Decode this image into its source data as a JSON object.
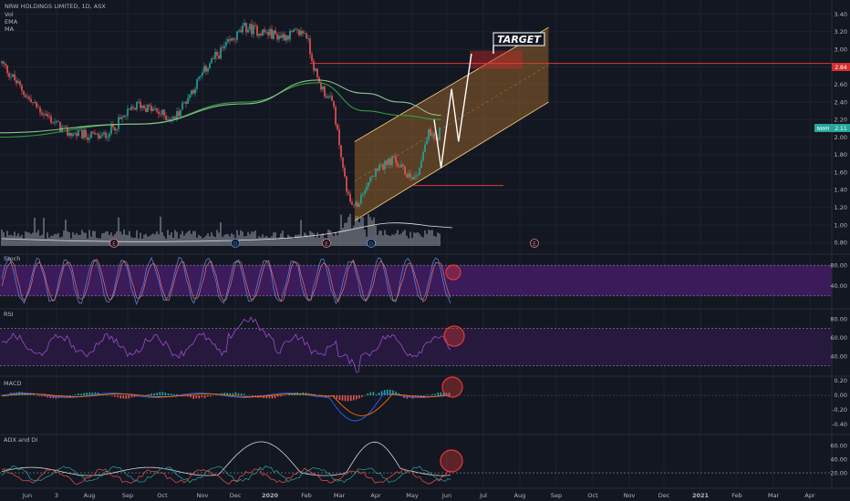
{
  "header": {
    "symbol_line": "NRW HOLDINGS LIMITED, 1D, ASX",
    "indicators": [
      "Vol",
      "EMA",
      "MA"
    ]
  },
  "annotations": {
    "target_label": "TARGET",
    "badges": [
      "E",
      "D",
      "E",
      "D",
      "E"
    ]
  },
  "price_labels": {
    "target_price": "2.84",
    "current_tag": "NWH",
    "current_price": "2.11"
  },
  "colors": {
    "background": "#131722",
    "up": "#26a69a",
    "down": "#ef5350",
    "ema": "#2e9e3e",
    "ma": "#8fbf8f",
    "channel_fill": "#b7772b",
    "panel_band": "#4a1e6e",
    "target_line": "#e53935",
    "highlight_circle": "#e53935"
  },
  "chart_data": [
    {
      "type": "line",
      "panel": "price",
      "subtype": "candlestick",
      "series": [
        {
          "name": "NWH",
          "x": [
            "2019-05-20",
            "2019-06-20",
            "2019-07-20",
            "2019-08-20",
            "2019-09-20",
            "2019-10-20",
            "2019-11-20",
            "2019-12-20",
            "2020-01-20",
            "2020-02-10",
            "2020-02-20",
            "2020-03-05",
            "2020-03-12",
            "2020-03-19",
            "2020-03-26",
            "2020-04-05",
            "2020-04-15",
            "2020-04-25",
            "2020-05-05",
            "2020-05-15",
            "2020-05-25",
            "2020-06-01",
            "2020-06-05"
          ],
          "values": [
            2.95,
            2.4,
            2.05,
            2.0,
            2.38,
            2.2,
            2.85,
            3.25,
            3.15,
            3.2,
            2.65,
            2.35,
            1.7,
            1.25,
            1.2,
            1.55,
            1.65,
            1.75,
            1.6,
            1.55,
            2.05,
            1.98,
            2.11
          ]
        },
        {
          "name": "EMA",
          "x": [
            "2019-05-20",
            "2019-09-20",
            "2019-12-20",
            "2020-02-20",
            "2020-04-01",
            "2020-05-01",
            "2020-06-05"
          ],
          "values": [
            2.0,
            2.15,
            2.4,
            2.62,
            2.3,
            2.25,
            2.2
          ]
        },
        {
          "name": "MA",
          "x": [
            "2019-05-20",
            "2019-09-20",
            "2019-12-20",
            "2020-02-20",
            "2020-04-01",
            "2020-05-01",
            "2020-06-05"
          ],
          "values": [
            2.05,
            2.15,
            2.38,
            2.65,
            2.5,
            2.4,
            2.25
          ]
        }
      ],
      "projection": {
        "x": [
          "2020-06-05",
          "2020-06-14",
          "2020-06-20",
          "2020-07-01"
        ],
        "values": [
          1.65,
          2.55,
          1.95,
          2.95
        ]
      },
      "channel": {
        "lower": {
          "x": [
            "2020-03-23",
            "2020-09-05"
          ],
          "values": [
            1.05,
            2.4
          ]
        },
        "upper": {
          "x": [
            "2020-03-23",
            "2020-09-05"
          ],
          "values": [
            1.95,
            3.25
          ]
        }
      },
      "target_level": 2.84,
      "support_level": 1.45,
      "ylim": [
        0.7,
        3.5
      ],
      "ytick_labels": [
        "3.40",
        "3.20",
        "3.00",
        "2.80",
        "2.60",
        "2.40",
        "2.20",
        "2.00",
        "1.80",
        "1.60",
        "1.40",
        "1.20",
        "1.00",
        "0.80"
      ],
      "xtick_labels": [
        "Jun",
        "3",
        "Aug",
        "Sep",
        "Oct",
        "Nov",
        "Dec",
        "2020",
        "Feb",
        "Mar",
        "Apr",
        "May",
        "Jun",
        "Jul",
        "Aug",
        "Sep",
        "Oct",
        "Nov",
        "Dec",
        "2021",
        "Feb",
        "Mar",
        "Apr"
      ],
      "grid": true
    },
    {
      "type": "line",
      "panel": "stoch",
      "title": "Stoch",
      "ytick_labels": [
        "80.00",
        "40.00"
      ],
      "ylim": [
        0,
        100
      ],
      "band": [
        20,
        80
      ]
    },
    {
      "type": "line",
      "panel": "rsi",
      "title": "RSI",
      "ytick_labels": [
        "80.00",
        "60.00",
        "40.00"
      ],
      "ylim": [
        20,
        90
      ],
      "band": [
        30,
        70
      ]
    },
    {
      "type": "bar",
      "panel": "macd",
      "title": "MACD",
      "ytick_labels": [
        "0.20",
        "0.00",
        "-0.20",
        "-0.40"
      ],
      "ylim": [
        -0.5,
        0.25
      ]
    },
    {
      "type": "line",
      "panel": "adx",
      "title": "ADX and DI",
      "ytick_labels": [
        "60.00",
        "40.00",
        "20.00"
      ],
      "ylim": [
        0,
        75
      ]
    }
  ]
}
